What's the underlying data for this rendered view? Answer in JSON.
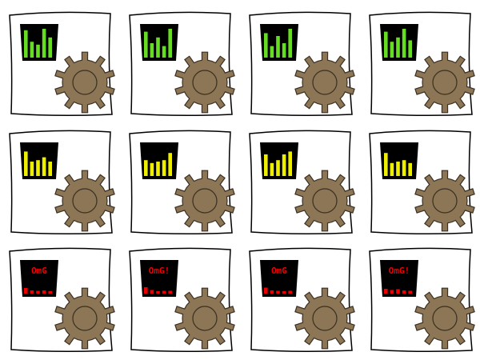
{
  "sprite_sheet": {
    "rows": [
      {
        "state": "good",
        "meter_color": "#66dd22",
        "frames": [
          {
            "bars": [
              0.95,
              0.55,
              0.45,
              1.0,
              0.7
            ],
            "label": ""
          },
          {
            "bars": [
              0.9,
              0.5,
              0.7,
              0.4,
              1.0
            ],
            "label": ""
          },
          {
            "bars": [
              0.85,
              0.4,
              0.75,
              0.5,
              1.0
            ],
            "label": ""
          },
          {
            "bars": [
              0.9,
              0.55,
              0.7,
              1.0,
              0.6
            ],
            "label": ""
          }
        ]
      },
      {
        "state": "warning",
        "meter_color": "#eeee00",
        "frames": [
          {
            "bars": [
              0.85,
              0.5,
              0.55,
              0.65,
              0.5
            ],
            "label": ""
          },
          {
            "bars": [
              0.55,
              0.45,
              0.5,
              0.55,
              0.8
            ],
            "label": ""
          },
          {
            "bars": [
              0.75,
              0.45,
              0.55,
              0.75,
              0.85
            ],
            "label": ""
          },
          {
            "bars": [
              0.8,
              0.45,
              0.5,
              0.55,
              0.45
            ],
            "label": ""
          }
        ]
      },
      {
        "state": "alert",
        "meter_color": "#ee0000",
        "frames": [
          {
            "bars": [
              0.7,
              0.4,
              0.35,
              0.4,
              0.3
            ],
            "label": "OmG"
          },
          {
            "bars": [
              0.8,
              0.45,
              0.3,
              0.35,
              0.35
            ],
            "label": "OmG!"
          },
          {
            "bars": [
              0.75,
              0.4,
              0.35,
              0.3,
              0.35
            ],
            "label": "OmG"
          },
          {
            "bars": [
              0.6,
              0.45,
              0.55,
              0.4,
              0.35
            ],
            "label": "OmG!"
          }
        ]
      }
    ],
    "colors": {
      "gear_fill": "#8c7655",
      "gear_stroke": "#3a2f22",
      "panel_fill": "#000000",
      "card_fill": "#ffffff",
      "card_stroke": "#000000"
    }
  }
}
